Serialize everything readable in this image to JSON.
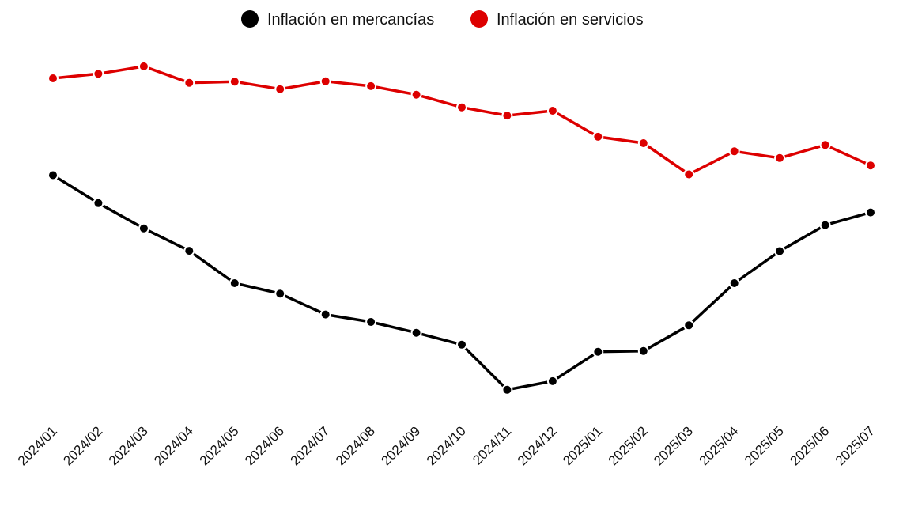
{
  "chart_data": {
    "type": "line",
    "title": "",
    "xlabel": "",
    "ylabel": "",
    "grid": false,
    "legend_position": "top-center",
    "categories": [
      "2024/01",
      "2024/02",
      "2024/03",
      "2024/04",
      "2024/05",
      "2024/06",
      "2024/07",
      "2024/08",
      "2024/09",
      "2024/10",
      "2024/11",
      "2024/12",
      "2025/01",
      "2025/02",
      "2025/03",
      "2025/04",
      "2025/05",
      "2025/06",
      "2025/07"
    ],
    "ylim": [
      0,
      10
    ],
    "series": [
      {
        "name": "Inflación en mercancías",
        "color": "#000000",
        "values": [
          7.4,
          6.65,
          5.97,
          5.37,
          4.5,
          4.22,
          3.66,
          3.46,
          3.17,
          2.85,
          1.64,
          1.87,
          2.66,
          2.68,
          3.37,
          4.5,
          5.36,
          6.06,
          6.4
        ]
      },
      {
        "name": "Inflación en servicios",
        "color": "#dd0000",
        "values": [
          10.0,
          10.12,
          10.32,
          9.88,
          9.91,
          9.71,
          9.92,
          9.79,
          9.56,
          9.22,
          9.0,
          9.13,
          8.43,
          8.26,
          7.42,
          8.04,
          7.86,
          8.21,
          7.66
        ]
      }
    ]
  }
}
